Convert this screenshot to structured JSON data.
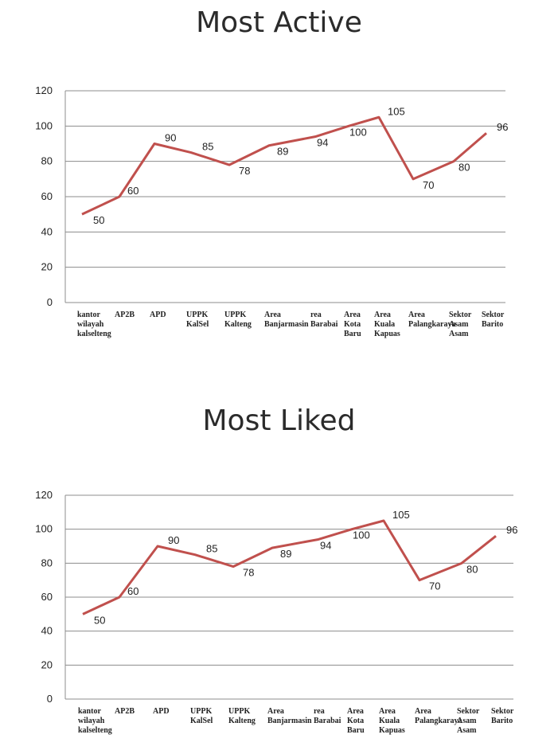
{
  "chart_data": [
    {
      "type": "line",
      "title": "Most Active",
      "categories": [
        [
          "kantor",
          "wilayah",
          "kalselteng"
        ],
        [
          "AP2B"
        ],
        [
          "APD"
        ],
        [
          "UPPK",
          "KalSel"
        ],
        [
          "UPPK",
          "Kalteng"
        ],
        [
          "Area",
          "Banjarmasin"
        ],
        [
          "rea",
          "Barabai"
        ],
        [
          "Area",
          "Kota",
          "Baru"
        ],
        [
          "Area",
          "Kuala",
          "Kapuas"
        ],
        [
          "Area",
          "Palangkaraya"
        ],
        [
          "Sektor",
          "Asam",
          "Asam"
        ],
        [
          "Sektor",
          "Barito"
        ]
      ],
      "series": [
        {
          "values": [
            50,
            60,
            90,
            85,
            78,
            89,
            94,
            100,
            105,
            70,
            80,
            96
          ],
          "color": "#c0504d"
        }
      ],
      "ylim": [
        0,
        120
      ],
      "yticks": [
        0,
        20,
        40,
        60,
        80,
        100,
        120
      ],
      "grid": true,
      "data_labels": true
    },
    {
      "type": "line",
      "title": "Most Liked",
      "categories": [
        [
          "kantor",
          "wilayah",
          "kalselteng"
        ],
        [
          "AP2B"
        ],
        [
          "APD"
        ],
        [
          "UPPK",
          "KalSel"
        ],
        [
          "UPPK",
          "Kalteng"
        ],
        [
          "Area",
          "Banjarmasin"
        ],
        [
          "rea",
          "Barabai"
        ],
        [
          "Area",
          "Kota",
          "Baru"
        ],
        [
          "Area",
          "Kuala",
          "Kapuas"
        ],
        [
          "Area",
          "Palangkaraya"
        ],
        [
          "Sektor",
          "Asam",
          "Asam"
        ],
        [
          "Sektor",
          "Barito"
        ]
      ],
      "series": [
        {
          "values": [
            50,
            60,
            90,
            85,
            78,
            89,
            94,
            100,
            105,
            70,
            80,
            96
          ],
          "color": "#c0504d"
        }
      ],
      "ylim": [
        0,
        120
      ],
      "yticks": [
        0,
        20,
        40,
        60,
        80,
        100,
        120
      ],
      "grid": true,
      "data_labels": true
    }
  ]
}
